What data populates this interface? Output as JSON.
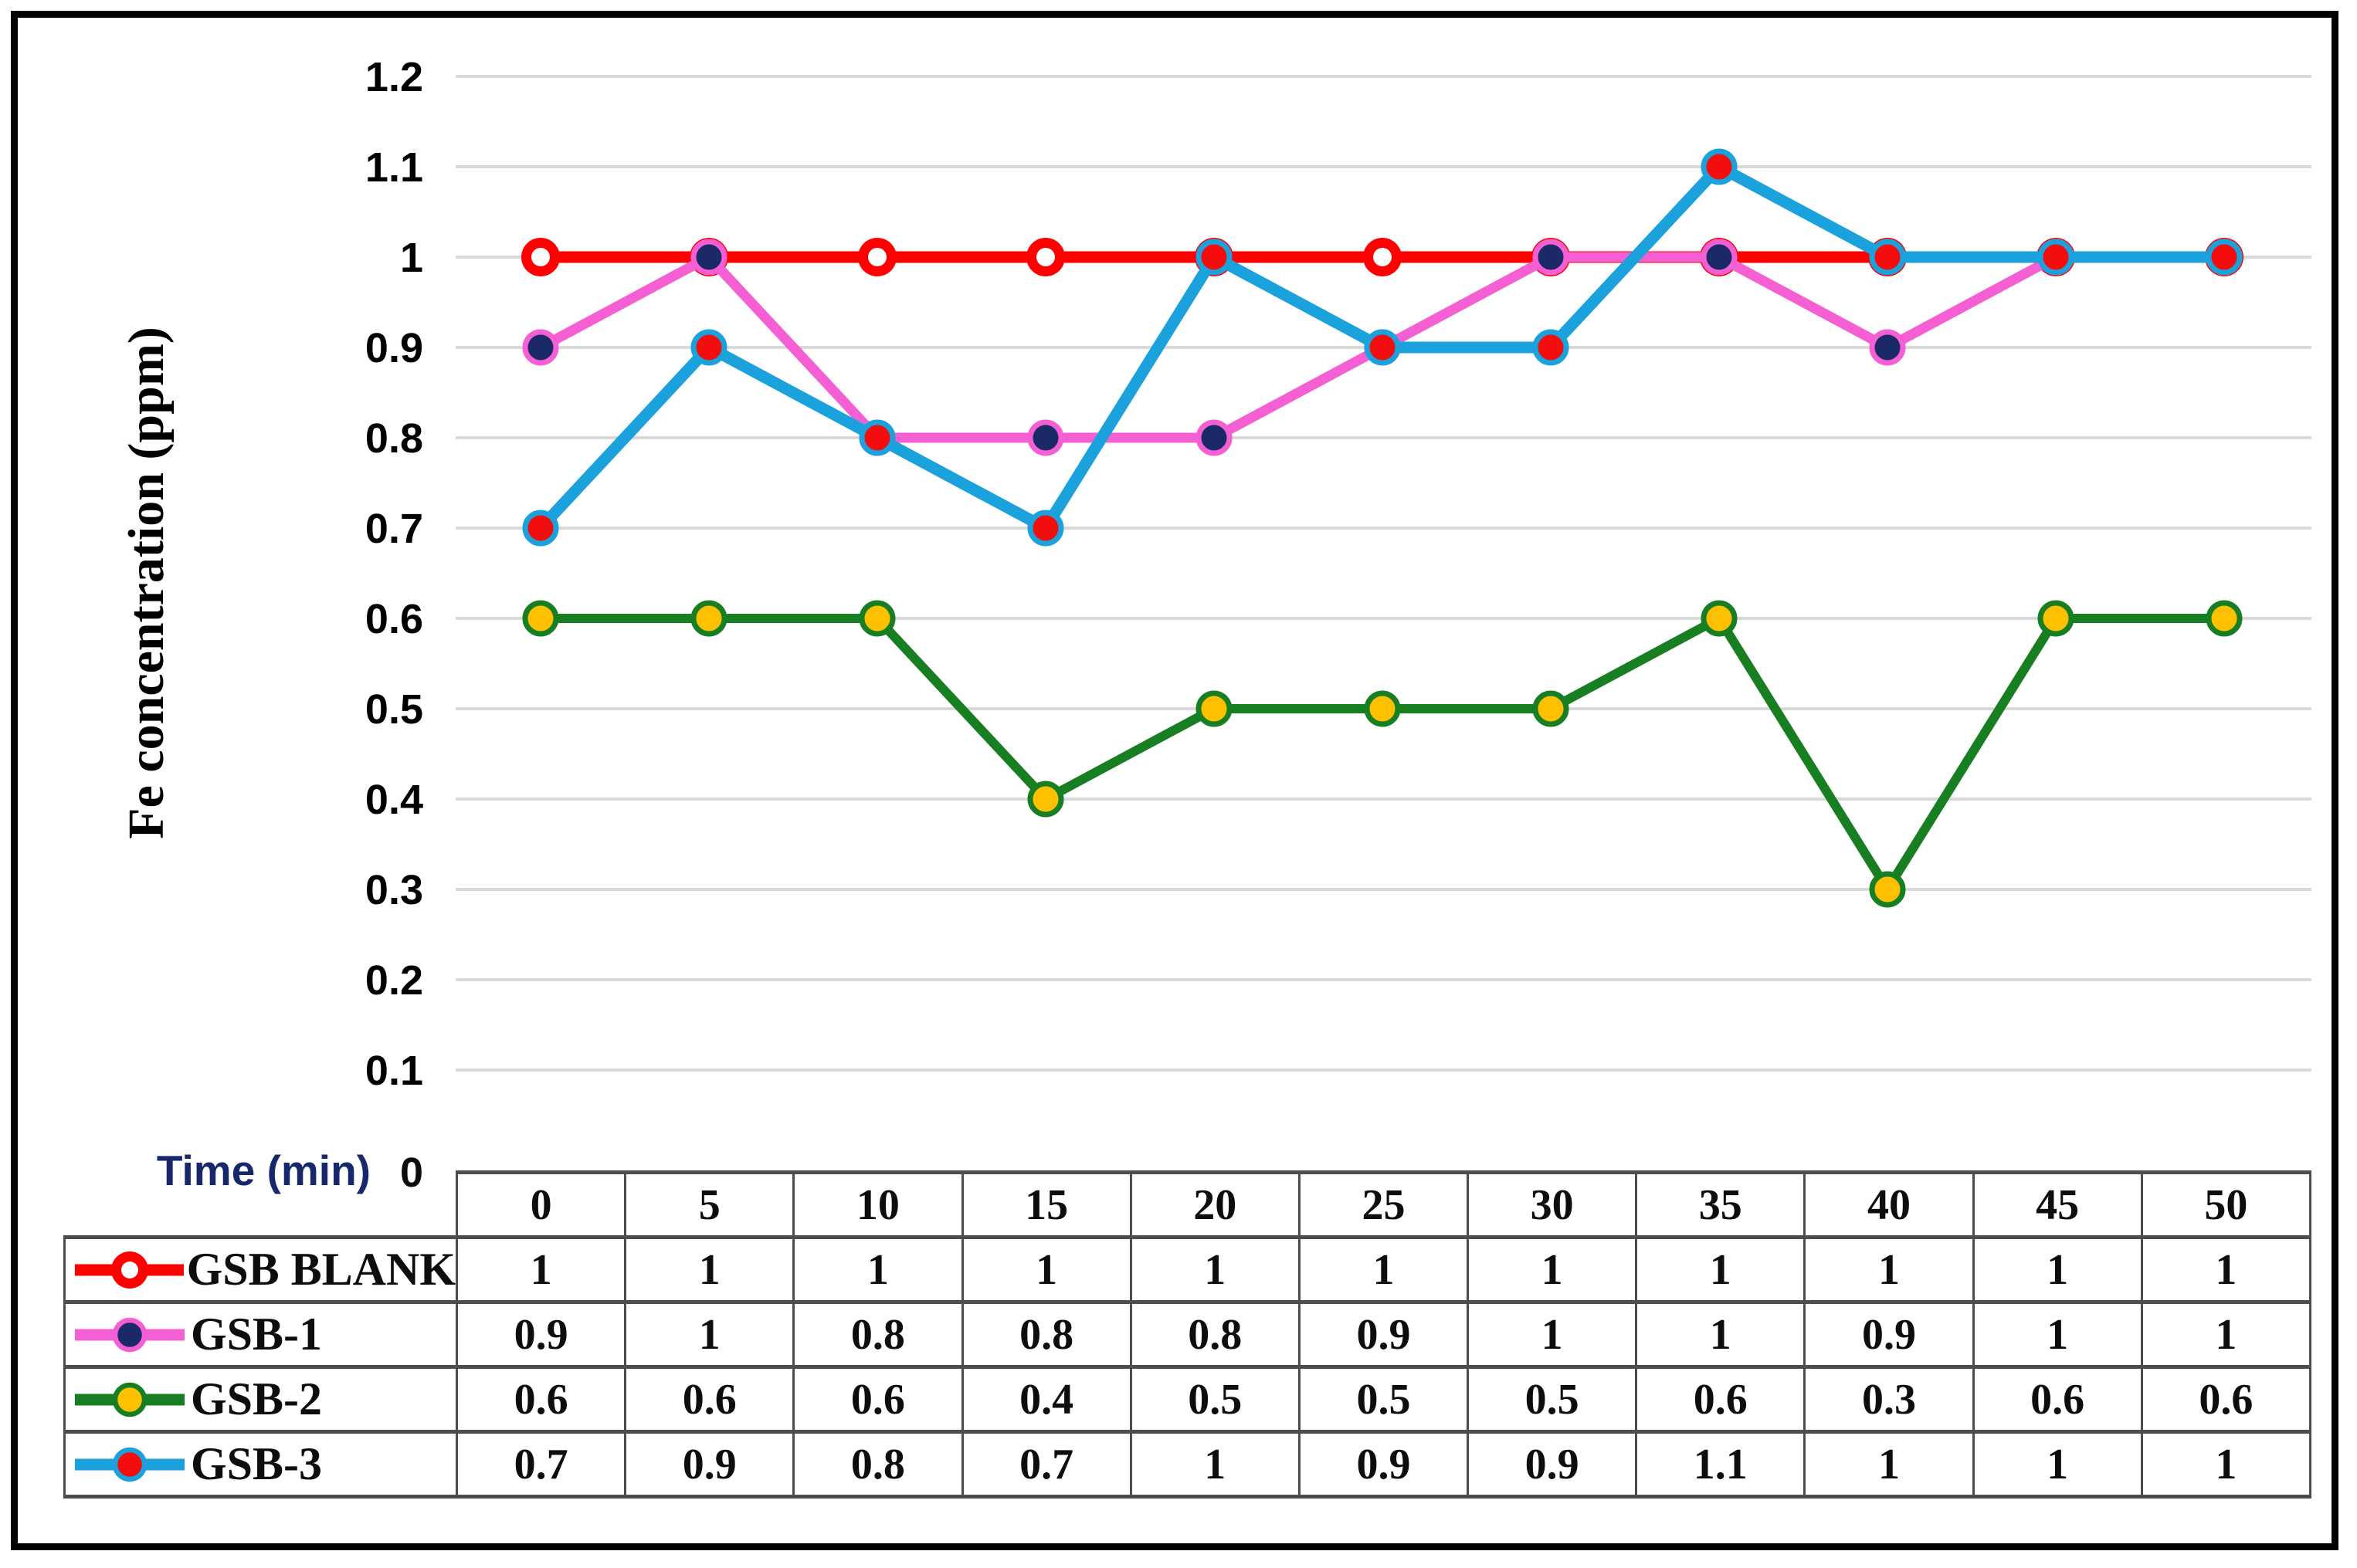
{
  "figure": {
    "ylabel": "Fe concentration (ppm)",
    "xlabel": "Time (min)",
    "origin_label": "0"
  },
  "colors": {
    "background": "#FFFFFF",
    "frame": "#000000",
    "gridline": "#D9D9D9",
    "tick_text": "#000000",
    "xlabel_text": "#16276B",
    "table_border": "#4D4D4D",
    "table_text": "#0D0D0D"
  },
  "chart_data": {
    "type": "line",
    "title": "",
    "xlabel": "Time (min)",
    "ylabel": "Fe concentration (ppm)",
    "x": [
      0,
      5,
      10,
      15,
      20,
      25,
      30,
      35,
      40,
      45,
      50
    ],
    "ylim": [
      0,
      1.2
    ],
    "yticks": [
      0,
      0.1,
      0.2,
      0.3,
      0.4,
      0.5,
      0.6,
      0.7,
      0.8,
      0.9,
      1,
      1.1,
      1.2
    ],
    "grid": true,
    "legend_position": "table-left",
    "series": [
      {
        "name": "GSB BLANK",
        "values": [
          1,
          1,
          1,
          1,
          1,
          1,
          1,
          1,
          1,
          1,
          1
        ],
        "line_color": "#FE0000",
        "line_width": 15,
        "marker": "ring",
        "marker_fill": "#FFFFFF",
        "marker_ring": "#FE0000"
      },
      {
        "name": "GSB-1",
        "values": [
          0.9,
          1,
          0.8,
          0.8,
          0.8,
          0.9,
          1,
          1,
          0.9,
          1,
          1
        ],
        "line_color": "#F55FD4",
        "line_width": 13,
        "marker": "dot",
        "marker_fill": "#1B2A67",
        "marker_ring": "#F55FD4"
      },
      {
        "name": "GSB-2",
        "values": [
          0.6,
          0.6,
          0.6,
          0.4,
          0.5,
          0.5,
          0.5,
          0.6,
          0.3,
          0.6,
          0.6
        ],
        "line_color": "#177E22",
        "line_width": 12,
        "marker": "dot",
        "marker_fill": "#FFC000",
        "marker_ring": "#177E22"
      },
      {
        "name": "GSB-3",
        "values": [
          0.7,
          0.9,
          0.8,
          0.7,
          1,
          0.9,
          0.9,
          1.1,
          1,
          1,
          1
        ],
        "line_color": "#1BA2DC",
        "line_width": 15,
        "marker": "dot",
        "marker_fill": "#F40D0D",
        "marker_ring": "#1BA2DC"
      }
    ]
  },
  "table": {
    "time_values": [
      "0",
      "5",
      "10",
      "15",
      "20",
      "25",
      "30",
      "35",
      "40",
      "45",
      "50"
    ],
    "rows": [
      {
        "label": "GSB BLANK",
        "values": [
          "1",
          "1",
          "1",
          "1",
          "1",
          "1",
          "1",
          "1",
          "1",
          "1",
          "1"
        ]
      },
      {
        "label": "GSB-1",
        "values": [
          "0.9",
          "1",
          "0.8",
          "0.8",
          "0.8",
          "0.9",
          "1",
          "1",
          "0.9",
          "1",
          "1"
        ]
      },
      {
        "label": "GSB-2",
        "values": [
          "0.6",
          "0.6",
          "0.6",
          "0.4",
          "0.5",
          "0.5",
          "0.5",
          "0.6",
          "0.3",
          "0.6",
          "0.6"
        ]
      },
      {
        "label": "GSB-3",
        "values": [
          "0.7",
          "0.9",
          "0.8",
          "0.7",
          "1",
          "0.9",
          "0.9",
          "1.1",
          "1",
          "1",
          "1"
        ]
      }
    ]
  }
}
